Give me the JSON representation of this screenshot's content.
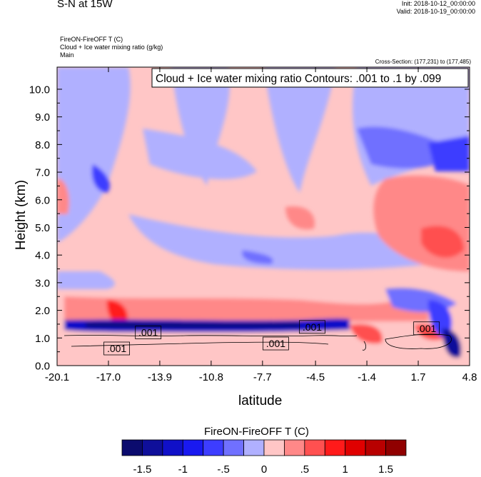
{
  "header": {
    "title": "S-N at 15W",
    "init": "Init: 2018-10-12_00:00:00",
    "valid": "Valid: 2018-10-19_00:00:00",
    "field_line": "FireON-FireOFF T   (C)",
    "contour_field_line": "Cloud + Ice water mixing ratio   (g/kg)",
    "domain_line": "Main",
    "cross_section": "Cross-Section: (177,231) to (177,485)"
  },
  "chart_data": {
    "type": "heatmap",
    "title": "Cloud + Ice water mixing ratio Contours: .001 to .1 by .099",
    "xlabel": "latitude",
    "ylabel": "Height (km)",
    "x_range": [
      -20.1,
      4.8
    ],
    "y_range": [
      0.0,
      10.8
    ],
    "x_ticks": [
      "-20.1",
      "-17.0",
      "-13.9",
      "-10.8",
      "-7.7",
      "-4.5",
      "-1.4",
      "1.7",
      "4.8"
    ],
    "y_ticks": [
      "0.0",
      "1.0",
      "2.0",
      "3.0",
      "4.0",
      "5.0",
      "6.0",
      "7.0",
      "8.0",
      "9.0",
      "10.0"
    ],
    "contour_labels": [
      ".001",
      ".001",
      ".001",
      ".001",
      ".001"
    ],
    "colorbar": {
      "title": "FireON-FireOFF T  (C)",
      "labels": [
        "-1.5",
        "-1",
        "-.5",
        "0",
        ".5",
        "1",
        "1.5"
      ],
      "colors": [
        "#0b0b6e",
        "#0f0f9a",
        "#1010c8",
        "#1919f0",
        "#3d3dff",
        "#7070ff",
        "#b0b0ff",
        "#ffc6c6",
        "#ff8888",
        "#ff5050",
        "#ff1a1a",
        "#e00000",
        "#b80000",
        "#900000"
      ]
    }
  }
}
